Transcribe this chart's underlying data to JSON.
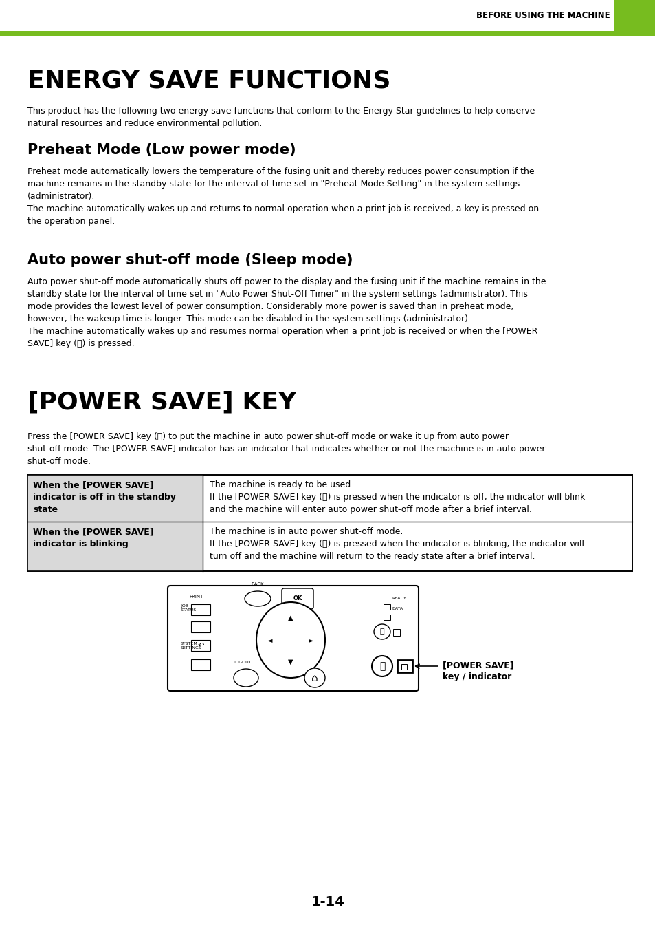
{
  "page_bg": "#ffffff",
  "header_bar_color": "#6ab023",
  "header_text": "BEFORE USING THE MACHINE",
  "main_title": "ENERGY SAVE FUNCTIONS",
  "intro_text": "This product has the following two energy save functions that conform to the Energy Star guidelines to help conserve\nnatural resources and reduce environmental pollution.",
  "section1_title": "Preheat Mode (Low power mode)",
  "section1_body": "Preheat mode automatically lowers the temperature of the fusing unit and thereby reduces power consumption if the\nmachine remains in the standby state for the interval of time set in \"Preheat Mode Setting\" in the system settings\n(administrator).\nThe machine automatically wakes up and returns to normal operation when a print job is received, a key is pressed on\nthe operation panel.",
  "section2_title": "Auto power shut-off mode (Sleep mode)",
  "section2_body": "Auto power shut-off mode automatically shuts off power to the display and the fusing unit if the machine remains in the\nstandby state for the interval of time set in \"Auto Power Shut-Off Timer\" in the system settings (administrator). This\nmode provides the lowest level of power consumption. Considerably more power is saved than in preheat mode,\nhowever, the wakeup time is longer. This mode can be disabled in the system settings (administrator).\nThe machine automatically wakes up and resumes normal operation when a print job is received or when the [POWER\nSAVE] key (Ⓐ) is pressed.",
  "section3_title": "[POWER SAVE] KEY",
  "section3_body": "Press the [POWER SAVE] key (Ⓐ) to put the machine in auto power shut-off mode or wake it up from auto power\nshut-off mode. The [POWER SAVE] indicator has an indicator that indicates whether or not the machine is in auto power\nshut-off mode.",
  "table_row1_header": "When the [POWER SAVE]\nindicator is off in the standby\nstate",
  "table_row1_body": "The machine is ready to be used.\nIf the [POWER SAVE] key (Ⓐ) is pressed when the indicator is off, the indicator will blink\nand the machine will enter auto power shut-off mode after a brief interval.",
  "table_row2_header": "When the [POWER SAVE]\nindicator is blinking",
  "table_row2_body": "The machine is in auto power shut-off mode.\nIf the [POWER SAVE] key (Ⓐ) is pressed when the indicator is blinking, the indicator will\nturn off and the machine will return to the ready state after a brief interval.",
  "callout_text": "[POWER SAVE]\nkey / indicator",
  "page_number": "1-14",
  "table_header_bg": "#d9d9d9",
  "table_border_color": "#000000",
  "green_color": "#77bc1f"
}
